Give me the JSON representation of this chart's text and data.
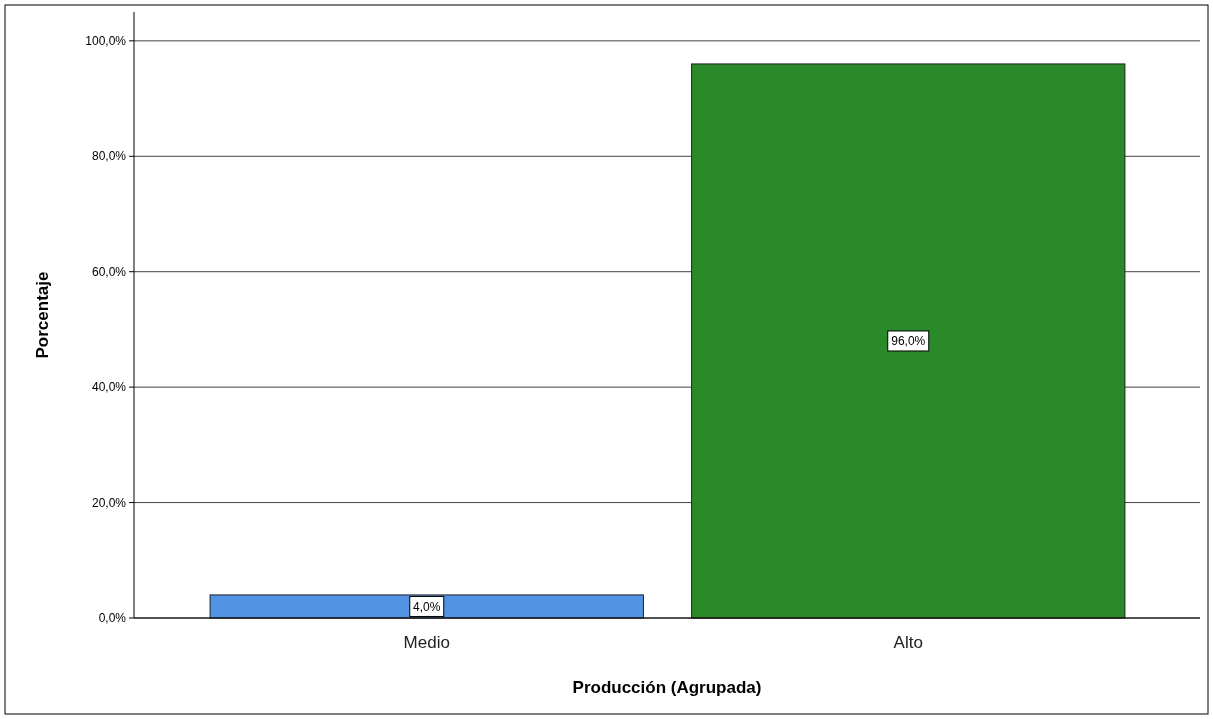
{
  "chart_data": {
    "type": "bar",
    "xlabel": "Producción (Agrupada)",
    "ylabel": "Porcentaje",
    "categories": [
      "Medio",
      "Alto"
    ],
    "values": [
      4,
      96
    ],
    "colors": [
      "#5294e3",
      "#2a8a2a"
    ],
    "value_labels": [
      "4,0%",
      "96,0%"
    ],
    "ylim": [
      0,
      105
    ],
    "yticks": [
      {
        "value": 0,
        "label": "0,0%"
      },
      {
        "value": 20,
        "label": "20,0%"
      },
      {
        "value": 40,
        "label": "40,0%"
      },
      {
        "value": 60,
        "label": "60,0%"
      },
      {
        "value": 80,
        "label": "80,0%"
      },
      {
        "value": 100,
        "label": "100,0%"
      }
    ],
    "grid": "y"
  }
}
